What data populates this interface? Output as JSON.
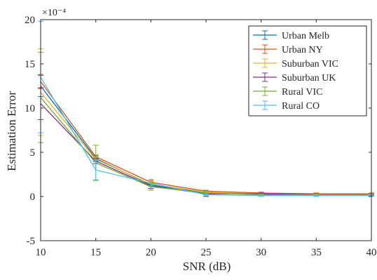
{
  "chart_data": {
    "type": "line",
    "title": "",
    "xlabel": "SNR (dB)",
    "ylabel": "Estimation Error",
    "y_exponent_label": "×10⁻⁴",
    "x": [
      10,
      15,
      20,
      25,
      30,
      35,
      40
    ],
    "xlim": [
      10,
      40
    ],
    "ylim": [
      -5,
      20
    ],
    "x_ticks": [
      "10",
      "15",
      "20",
      "25",
      "30",
      "35",
      "40"
    ],
    "y_ticks": [
      "-5",
      "0",
      "5",
      "10",
      "15",
      "20"
    ],
    "y_tick_values": [
      -5,
      0,
      5,
      10,
      15,
      20
    ],
    "grid": false,
    "legend_position": "top-right",
    "series": [
      {
        "name": "Urban Melb",
        "color": "#0072BD",
        "values": [
          12.5,
          4.3,
          1.3,
          0.4,
          0.3,
          0.2,
          0.2
        ],
        "errors": [
          1.2,
          0.3,
          0.4,
          0.2,
          0.1,
          0.1,
          0.1
        ]
      },
      {
        "name": "Urban NY",
        "color": "#D95319",
        "values": [
          13.0,
          4.5,
          1.6,
          0.6,
          0.4,
          0.3,
          0.3
        ],
        "errors": [
          0.8,
          0.2,
          0.3,
          0.1,
          0.1,
          0.1,
          0.1
        ]
      },
      {
        "name": "Suburban VIC",
        "color": "#EDB120",
        "values": [
          11.8,
          4.2,
          1.4,
          0.5,
          0.3,
          0.2,
          0.2
        ],
        "errors": [
          4.9,
          0.3,
          0.3,
          0.1,
          0.1,
          0.1,
          0.1
        ]
      },
      {
        "name": "Suburban UK",
        "color": "#7E2F8E",
        "values": [
          10.5,
          4.0,
          1.2,
          0.3,
          0.3,
          0.2,
          0.2
        ],
        "errors": [
          1.8,
          0.3,
          0.3,
          0.3,
          0.1,
          0.1,
          0.1
        ]
      },
      {
        "name": "Rural VIC",
        "color": "#77AC30",
        "values": [
          11.2,
          3.8,
          1.1,
          0.4,
          0.2,
          0.2,
          0.2
        ],
        "errors": [
          5.1,
          2.0,
          0.4,
          0.2,
          0.1,
          0.1,
          0.1
        ]
      },
      {
        "name": "Rural CO",
        "color": "#4DBEEE",
        "values": [
          13.5,
          3.0,
          1.5,
          0.2,
          0.1,
          0.1,
          0.1
        ],
        "errors": [
          6.3,
          1.1,
          0.3,
          0.1,
          0.1,
          0.1,
          0.1
        ]
      }
    ]
  }
}
